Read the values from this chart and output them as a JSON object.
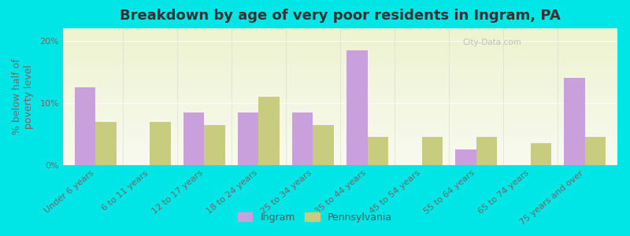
{
  "title": "Breakdown by age of very poor residents in Ingram, PA",
  "ylabel": "% below half of\npoverty level",
  "categories": [
    "Under 6 years",
    "6 to 11 years",
    "12 to 17 years",
    "18 to 24 years",
    "25 to 34 years",
    "35 to 44 years",
    "45 to 54 years",
    "55 to 64 years",
    "65 to 74 years",
    "75 years and over"
  ],
  "ingram_values": [
    12.5,
    0.0,
    8.5,
    8.5,
    8.5,
    18.5,
    0.0,
    2.5,
    0.0,
    14.0
  ],
  "pa_values": [
    7.0,
    7.0,
    6.5,
    11.0,
    6.5,
    4.5,
    4.5,
    4.5,
    3.5,
    4.5
  ],
  "ingram_color": "#c9a0dc",
  "pa_color": "#c8cc7f",
  "background_top": "#eef3d0",
  "background_bottom": "#f8faf0",
  "outer_background": "#00e5e5",
  "ylim": [
    0,
    22
  ],
  "yticks": [
    0,
    10,
    20
  ],
  "ytick_labels": [
    "0%",
    "10%",
    "20%"
  ],
  "bar_width": 0.38,
  "legend_labels": [
    "Ingram",
    "Pennsylvania"
  ],
  "title_fontsize": 13,
  "axis_label_fontsize": 9,
  "tick_fontsize": 8
}
